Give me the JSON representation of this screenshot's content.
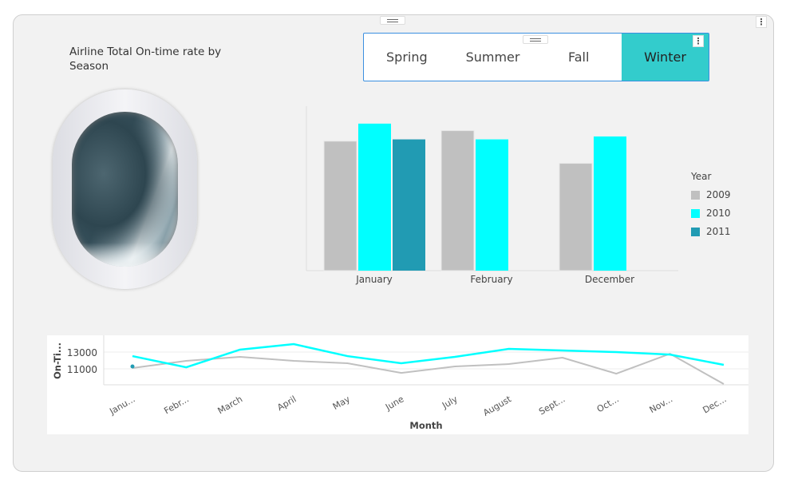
{
  "title": "Airline Total On-time rate by Season",
  "slicer": {
    "options": [
      "Spring",
      "Summer",
      "Fall",
      "Winter"
    ],
    "selected": "Winter",
    "accent": "#33cccc"
  },
  "colors": {
    "2009": "#c0c0c0",
    "2010": "#00ffff",
    "2011": "#219bb3"
  },
  "chart_data": [
    {
      "type": "bar",
      "categories": [
        "January",
        "February",
        "December"
      ],
      "legend_title": "Year",
      "legend_position": "right",
      "series": [
        {
          "name": "2009",
          "values": [
            11100,
            12000,
            9200
          ]
        },
        {
          "name": "2010",
          "values": [
            12600,
            11250,
            11500
          ]
        },
        {
          "name": "2011",
          "values": [
            11250,
            null,
            null
          ]
        }
      ],
      "ylim": [
        0,
        13000
      ],
      "grid": false
    },
    {
      "type": "line",
      "xlabel": "Month",
      "ylabel": "On-Ti...",
      "categories": [
        "Janu...",
        "Febr...",
        "March",
        "April",
        "May",
        "June",
        "July",
        "August",
        "Sept...",
        "Oct...",
        "Nov...",
        "Dec..."
      ],
      "yticks": [
        11000,
        13000
      ],
      "ylim": [
        9100,
        15000
      ],
      "grid": true,
      "series": [
        {
          "name": "2009",
          "values": [
            11100,
            11950,
            12430,
            11950,
            11670,
            10520,
            11290,
            11570,
            12330,
            10430,
            12800,
            9190
          ]
        },
        {
          "name": "2010",
          "values": [
            12520,
            11190,
            13290,
            13950,
            12520,
            11670,
            12430,
            13380,
            13190,
            13000,
            12700,
            11480
          ]
        },
        {
          "name": "2011",
          "values": [
            11290,
            null,
            null,
            null,
            null,
            null,
            null,
            null,
            null,
            null,
            null,
            null
          ]
        }
      ]
    }
  ]
}
